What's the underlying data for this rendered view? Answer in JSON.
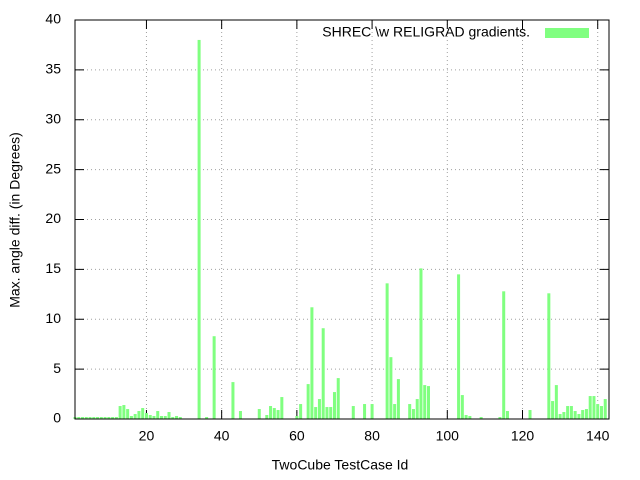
{
  "chart_data": {
    "type": "bar",
    "xlabel": "TwoCube TestCase Id",
    "ylabel": "Max. angle diff. (in Degrees)",
    "series": [
      {
        "name": "SHREC \\w RELIGRAD gradients.",
        "color": "#80ff80",
        "x": [
          1,
          2,
          3,
          4,
          5,
          6,
          7,
          8,
          9,
          10,
          11,
          12,
          13,
          14,
          15,
          16,
          17,
          18,
          19,
          20,
          21,
          22,
          23,
          24,
          25,
          26,
          27,
          28,
          29,
          34,
          36,
          38,
          43,
          45,
          50,
          52,
          53,
          54,
          55,
          56,
          60,
          61,
          63,
          64,
          65,
          66,
          67,
          68,
          69,
          70,
          71,
          75,
          78,
          80,
          84,
          85,
          86,
          87,
          90,
          91,
          92,
          93,
          94,
          95,
          103,
          104,
          105,
          106,
          109,
          114,
          115,
          116,
          122,
          127,
          128,
          129,
          130,
          131,
          132,
          133,
          134,
          135,
          136,
          137,
          138,
          139,
          140,
          141,
          142
        ],
        "values": [
          0.2,
          0.2,
          0.2,
          0.2,
          0.2,
          0.2,
          0.2,
          0.2,
          0.2,
          0.2,
          0.2,
          0.2,
          1.3,
          1.4,
          1.0,
          0.3,
          0.5,
          0.8,
          1.1,
          0.6,
          0.4,
          0.3,
          0.8,
          0.3,
          0.3,
          0.7,
          0.2,
          0.3,
          0.2,
          38,
          0.2,
          8.3,
          3.7,
          0.8,
          1.0,
          0.4,
          1.3,
          1.1,
          0.9,
          2.2,
          0.3,
          1.5,
          3.5,
          11.2,
          1.2,
          2.0,
          9.1,
          1.2,
          1.2,
          2.7,
          4.1,
          1.3,
          1.5,
          1.5,
          13.6,
          6.2,
          1.5,
          4.0,
          1.5,
          1.0,
          2.0,
          15.1,
          3.4,
          3.3,
          14.5,
          2.4,
          0.4,
          0.3,
          0.2,
          0.2,
          12.8,
          0.8,
          0.9,
          12.6,
          1.8,
          3.4,
          0.5,
          0.7,
          1.3,
          1.3,
          0.8,
          0.5,
          0.9,
          1.0,
          2.3,
          2.3,
          1.5,
          1.3,
          2.0
        ]
      }
    ],
    "xlim": [
      1,
      143
    ],
    "ylim": [
      0,
      40
    ],
    "xticks": [
      20,
      40,
      60,
      80,
      100,
      120,
      140
    ],
    "yticks": [
      0,
      5,
      10,
      15,
      20,
      25,
      30,
      35,
      40
    ],
    "grid": true,
    "legend": "top-right"
  }
}
